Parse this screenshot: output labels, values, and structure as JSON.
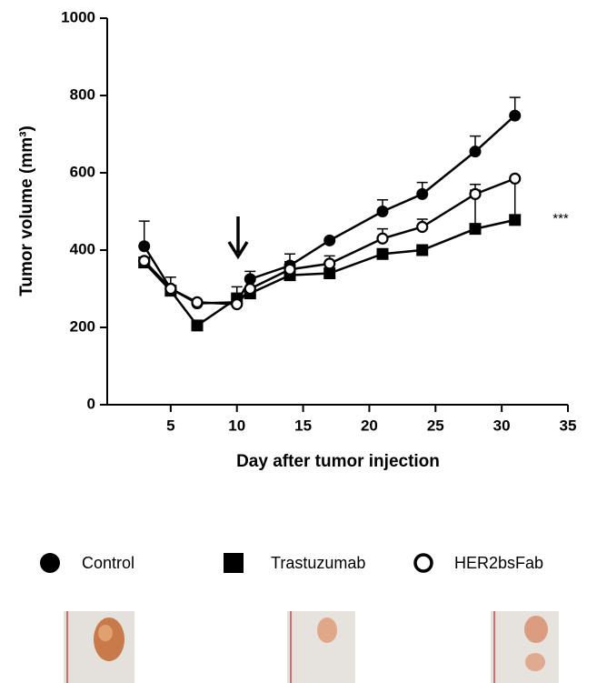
{
  "chart_data": {
    "type": "line",
    "ylabel": "Tumor volume (mm³)",
    "xlabel": "Day after tumor injection",
    "annotation": "***",
    "xlim": [
      0,
      35
    ],
    "xticks": [
      5,
      10,
      15,
      20,
      25,
      30,
      35
    ],
    "ylim": [
      0,
      1000
    ],
    "yticks": [
      0,
      200,
      400,
      600,
      800,
      1000
    ],
    "x": [
      3,
      5,
      7,
      10,
      11,
      14,
      17,
      21,
      24,
      28,
      31
    ],
    "series": [
      {
        "name": "Control",
        "color": "#000000",
        "marker": "circle",
        "values": [
          410,
          300,
          262,
          265,
          325,
          360,
          425,
          500,
          545,
          655,
          748
        ],
        "errors": [
          65,
          30,
          null,
          null,
          20,
          30,
          null,
          30,
          30,
          40,
          47
        ]
      },
      {
        "name": "Trastuzumab",
        "color": "#000000",
        "marker": "square",
        "values": [
          368,
          295,
          205,
          275,
          288,
          335,
          340,
          390,
          400,
          455,
          478
        ],
        "errors": [
          null,
          null,
          null,
          30,
          null,
          null,
          null,
          null,
          null,
          100,
          107
        ]
      },
      {
        "name": "HER2bsFab",
        "color": "#000000",
        "marker": "open-circle",
        "values": [
          372,
          300,
          265,
          260,
          300,
          350,
          365,
          430,
          460,
          545,
          585
        ],
        "errors": [
          null,
          null,
          null,
          null,
          null,
          20,
          20,
          25,
          20,
          25,
          null
        ]
      }
    ]
  }
}
